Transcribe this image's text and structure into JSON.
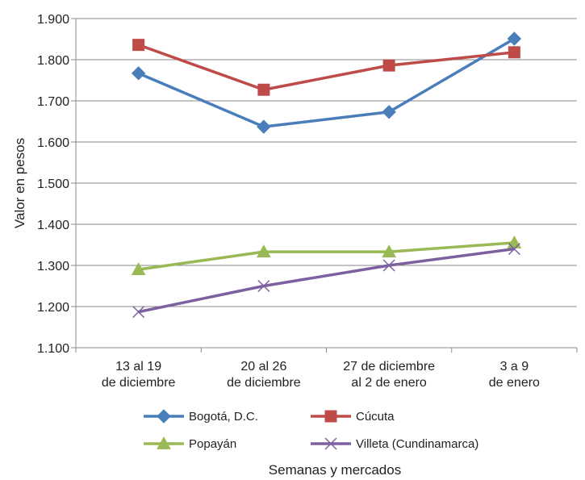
{
  "chart_data": {
    "type": "line",
    "title": "",
    "xlabel": "Semanas y mercados",
    "ylabel": "Valor en pesos",
    "ylim": [
      1100,
      1900
    ],
    "yticks": [
      1100,
      1200,
      1300,
      1400,
      1500,
      1600,
      1700,
      1800,
      1900
    ],
    "ytick_labels": [
      "1.100",
      "1.200",
      "1.300",
      "1.400",
      "1.500",
      "1.600",
      "1.700",
      "1.800",
      "1.900"
    ],
    "grid": true,
    "legend_position": "bottom",
    "categories": [
      [
        "13 al 19",
        "de diciembre"
      ],
      [
        "20 al 26",
        "de diciembre"
      ],
      [
        "27 de diciembre",
        "al 2 de enero"
      ],
      [
        "3 a 9",
        "de enero"
      ]
    ],
    "series": [
      {
        "name": "Bogotá, D.C.",
        "values": [
          1767,
          1637,
          1673,
          1851
        ],
        "color": "#4a7ebb",
        "marker": "diamond"
      },
      {
        "name": "Cúcuta",
        "values": [
          1836,
          1727,
          1786,
          1818
        ],
        "color": "#be4b48",
        "marker": "square"
      },
      {
        "name": "Popayán",
        "values": [
          1290,
          1333,
          1333,
          1355
        ],
        "color": "#98b954",
        "marker": "triangle"
      },
      {
        "name": "Villeta (Cundinamarca)",
        "values": [
          1187,
          1250,
          1300,
          1340
        ],
        "color": "#7d60a0",
        "marker": "x"
      }
    ]
  }
}
